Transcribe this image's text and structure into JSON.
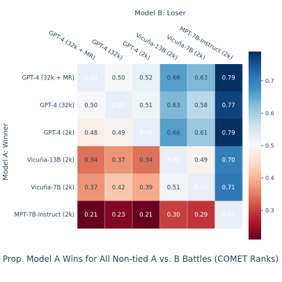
{
  "chart_data": {
    "type": "heatmap",
    "title": "Prop. Model A Wins for All Non-tied A vs. B Battles (COMET Ranks)",
    "xlabel": "Model B: Loser",
    "ylabel": "Model A: Winner",
    "x_categories": [
      "GPT-4 (32k + MR)",
      "GPT-4 (32k)",
      "GPT-4 (2k)",
      "Vicuña-13B (2k)",
      "Vicuña-7B (2k)",
      "MPT-7B-Instruct (2k)"
    ],
    "y_categories": [
      "GPT-4 (32k + MR)",
      "GPT-4 (32k)",
      "GPT-4 (2k)",
      "Vicuña-13B (2k)",
      "Vicuña-7B (2k)",
      "MPT-7B-Instruct (2k)"
    ],
    "values": [
      [
        null,
        0.5,
        0.52,
        0.66,
        0.63,
        0.79
      ],
      [
        0.5,
        null,
        0.51,
        0.63,
        0.58,
        0.77
      ],
      [
        0.48,
        0.49,
        null,
        0.66,
        0.61,
        0.79
      ],
      [
        0.34,
        0.37,
        0.34,
        null,
        0.49,
        0.7
      ],
      [
        0.37,
        0.42,
        0.39,
        0.51,
        null,
        0.71
      ],
      [
        0.21,
        0.23,
        0.21,
        0.3,
        0.29,
        null
      ]
    ],
    "labels": [
      [
        "0.00",
        "0.50",
        "0.52",
        "0.66",
        "0.63",
        "0.79"
      ],
      [
        "0.50",
        "0.00",
        "0.51",
        "0.63",
        "0.58",
        "0.77"
      ],
      [
        "0.48",
        "0.49",
        "0.00",
        "0.66",
        "0.61",
        "0.79"
      ],
      [
        "0.34",
        "0.37",
        "0.34",
        "0.00",
        "0.49",
        "0.70"
      ],
      [
        "0.37",
        "0.42",
        "0.39",
        "0.51",
        "0.00",
        "0.71"
      ],
      [
        "0.21",
        "0.23",
        "0.21",
        "0.30",
        "0.29",
        "0.00"
      ]
    ],
    "colorscale": "RdBu",
    "zmin": 0.21,
    "zmax": 0.79,
    "colorbar_ticks": [
      0.3,
      0.4,
      0.5,
      0.6,
      0.7
    ],
    "grid": true,
    "colors": {
      "diagonal_cell": "#e8edf6",
      "axis_text": "#2a3f5f"
    }
  }
}
